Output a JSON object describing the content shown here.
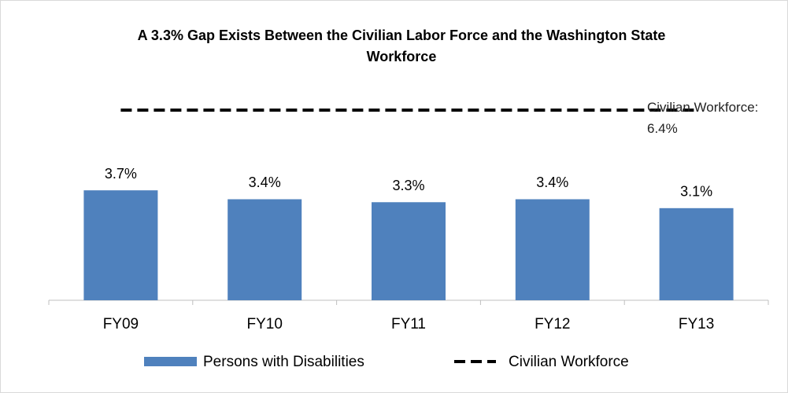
{
  "chart_data": {
    "type": "bar",
    "title": "A 3.3% Gap Exists Between the Civilian Labor Force and the Washington State Workforce",
    "annotation": "Civilian Workforce: 6.4%",
    "categories": [
      "FY09",
      "FY10",
      "FY11",
      "FY12",
      "FY13"
    ],
    "series": [
      {
        "name": "Persons with Disabilities",
        "color": "#4f81bd",
        "type": "bar",
        "values": [
          3.7,
          3.4,
          3.3,
          3.4,
          3.1
        ],
        "value_labels": [
          "3.7%",
          "3.4%",
          "3.3%",
          "3.4%",
          "3.1%"
        ]
      },
      {
        "name": "Civilian Workforce",
        "color": "#000000",
        "type": "line",
        "dashed": true,
        "values": [
          6.4,
          6.4,
          6.4,
          6.4,
          6.4
        ]
      }
    ],
    "ylim": [
      0,
      8
    ]
  }
}
